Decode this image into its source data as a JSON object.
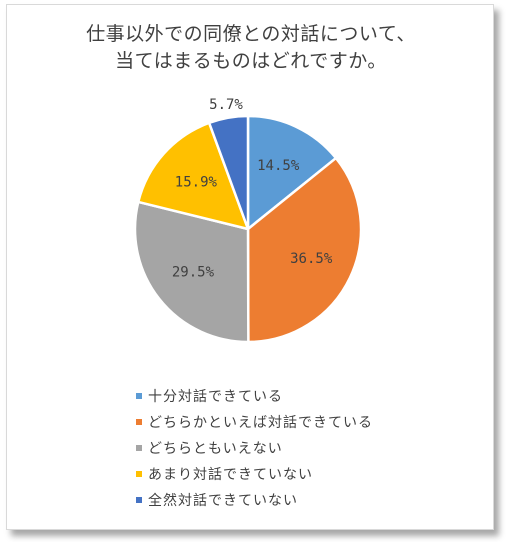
{
  "chart_data": {
    "type": "pie",
    "title": [
      "仕事以外での同僚との対話について、",
      "当てはまるものはどれですか。"
    ],
    "categories": [
      "十分対話できている",
      "どちらかといえば対話できている",
      "どちらともいえない",
      "あまり対話できていない",
      "全然対話できていない"
    ],
    "values": [
      14.5,
      36.5,
      29.5,
      15.9,
      5.7
    ],
    "data_labels": [
      "14.5%",
      "36.5%",
      "29.5%",
      "15.9%",
      "5.7%"
    ],
    "colors": [
      "#5b9bd5",
      "#ed7d31",
      "#a5a5a5",
      "#ffc000",
      "#4472c4"
    ],
    "start_angle_deg": 0,
    "direction": "clockwise",
    "legend_position": "bottom"
  }
}
